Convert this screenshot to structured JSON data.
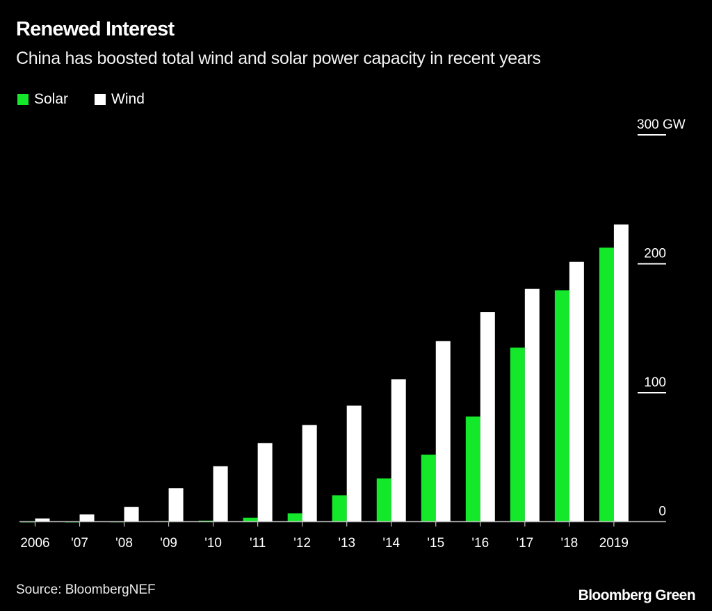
{
  "header": {
    "title": "Renewed Interest",
    "subtitle": "China has boosted total wind and solar power capacity in recent years"
  },
  "footer": {
    "source": "Source: BloombergNEF",
    "brand": "Bloomberg Green"
  },
  "colors": {
    "background": "#000000",
    "solar": "#14e82a",
    "wind": "#ffffff",
    "axis": "#bbbbbb",
    "text": "#ffffff"
  },
  "chart_data": {
    "type": "bar",
    "title": "Renewed Interest",
    "subtitle": "China has boosted total wind and solar power capacity in recent years",
    "xlabel": "",
    "ylabel": "GW",
    "categories": [
      "2006",
      "'07",
      "'08",
      "'09",
      "'10",
      "'11",
      "'12",
      "'13",
      "'14",
      "'15",
      "'16",
      "'17",
      "'18",
      "2019"
    ],
    "series": [
      {
        "name": "Solar",
        "color": "#14e82a",
        "values": [
          0.1,
          0.1,
          0.2,
          0.4,
          0.8,
          3.1,
          6.5,
          20.5,
          33.5,
          52,
          81.5,
          135,
          179.5,
          212.5
        ]
      },
      {
        "name": "Wind",
        "color": "#ffffff",
        "values": [
          2.5,
          5.6,
          11.5,
          26,
          43,
          61,
          75,
          90,
          110.5,
          140,
          162.5,
          180.5,
          201.5,
          230.5
        ]
      }
    ],
    "ylim": [
      0,
      300
    ],
    "yticks": [
      {
        "value": 0,
        "label": "0"
      },
      {
        "value": 100,
        "label": "100"
      },
      {
        "value": 200,
        "label": "200"
      },
      {
        "value": 300,
        "label": "300 GW"
      }
    ],
    "grid": false,
    "legend_position": "top-left",
    "y_axis_side": "right"
  }
}
